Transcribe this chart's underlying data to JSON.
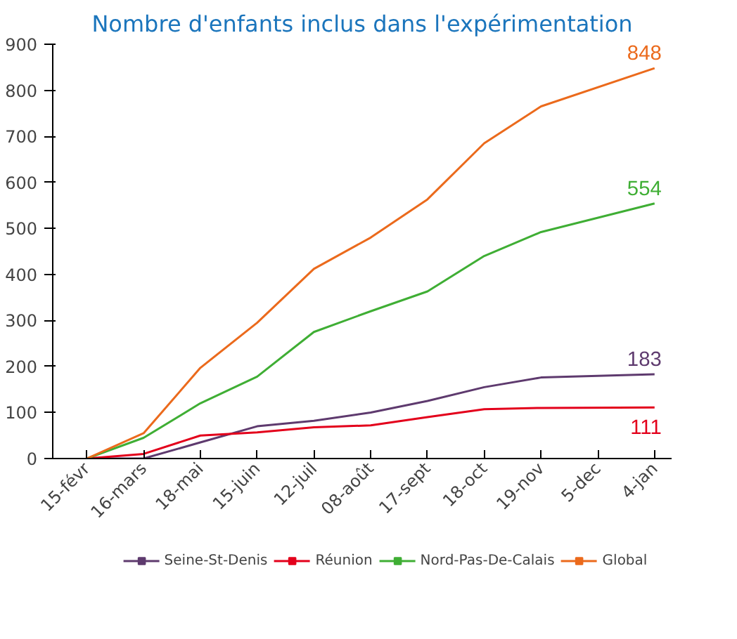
{
  "chart_data": {
    "type": "line",
    "title": "Nombre d'enfants inclus dans l'expérimentation",
    "categories": [
      "15-févr",
      "16-mars",
      "18-mai",
      "15-juin",
      "12-juil",
      "08-août",
      "17-sept",
      "18-oct",
      "19-nov",
      "5-dec",
      "4-jan"
    ],
    "series": [
      {
        "name": "Seine-St-Denis",
        "color": "#5e3a6e",
        "values": [
          0,
          0,
          35,
          70,
          82,
          100,
          125,
          155,
          176,
          null,
          183
        ],
        "value_labels": [
          null,
          null,
          null,
          null,
          null,
          null,
          null,
          null,
          null,
          null,
          "183"
        ]
      },
      {
        "name": "Réunion",
        "color": "#e3001b",
        "values": [
          0,
          10,
          50,
          57,
          68,
          72,
          90,
          107,
          110,
          null,
          111
        ],
        "value_labels": [
          null,
          null,
          null,
          null,
          null,
          null,
          null,
          null,
          null,
          null,
          "111"
        ]
      },
      {
        "name": "Nord-Pas-De-Calais",
        "color": "#3fae34",
        "values": [
          0,
          45,
          120,
          178,
          275,
          320,
          363,
          440,
          492,
          null,
          554
        ],
        "value_labels": [
          null,
          null,
          null,
          null,
          null,
          null,
          null,
          null,
          null,
          null,
          "554"
        ]
      },
      {
        "name": "Global",
        "color": "#eb6a1c",
        "values": [
          0,
          55,
          197,
          295,
          412,
          480,
          563,
          685,
          765,
          null,
          848
        ],
        "value_labels": [
          null,
          null,
          null,
          null,
          null,
          null,
          null,
          null,
          null,
          null,
          "848"
        ]
      }
    ],
    "ylim": [
      0,
      900
    ],
    "yticks": [
      0,
      100,
      200,
      300,
      400,
      500,
      600,
      700,
      800,
      900
    ],
    "grid": false,
    "legend": "bottom",
    "marker": "none",
    "line_style": "solid"
  }
}
